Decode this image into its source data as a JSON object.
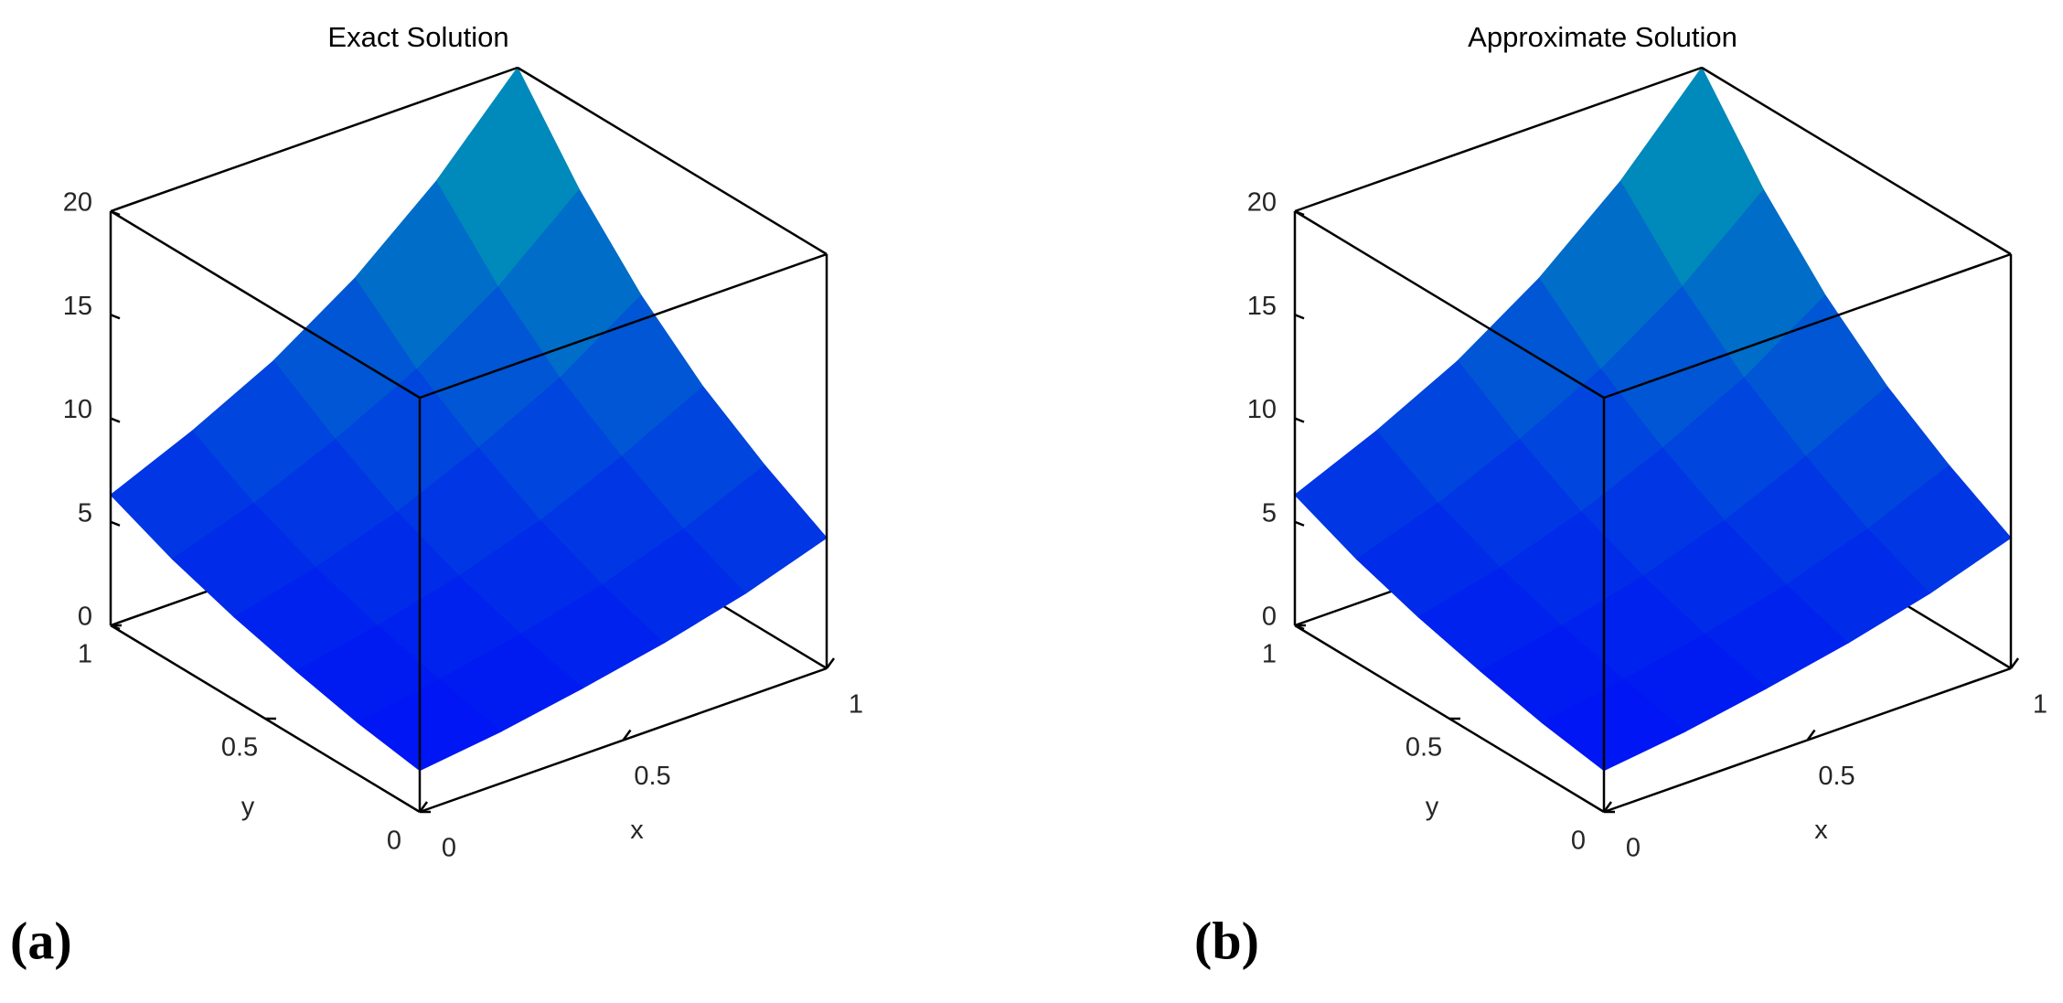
{
  "chart_data": [
    {
      "type": "surface",
      "title": "Exact Solution",
      "panel_label": "(a)",
      "xlabel": "x",
      "ylabel": "y",
      "x": [
        0,
        0.2,
        0.4,
        0.6,
        0.8,
        1
      ],
      "y": [
        0,
        0.2,
        0.4,
        0.6,
        0.8,
        1
      ],
      "z": [
        [
          2.0,
          2.5,
          3.2,
          4.0,
          5.0,
          6.3
        ],
        [
          2.5,
          3.2,
          4.0,
          5.0,
          6.3,
          8.0
        ],
        [
          3.2,
          4.0,
          5.0,
          6.3,
          8.0,
          10.0
        ],
        [
          4.0,
          5.0,
          6.3,
          8.0,
          10.0,
          12.6
        ],
        [
          5.0,
          6.3,
          8.0,
          10.0,
          12.6,
          15.9
        ],
        [
          6.3,
          8.0,
          10.0,
          12.6,
          15.9,
          20.0
        ]
      ],
      "xlim": [
        0,
        1
      ],
      "ylim": [
        0,
        1
      ],
      "zlim": [
        0,
        20
      ],
      "xticks": [
        0,
        0.5,
        1
      ],
      "yticks": [
        0,
        0.5,
        1
      ],
      "zticks": [
        0,
        5,
        10,
        15,
        20
      ],
      "colormap": "winter",
      "clim": [
        0,
        30
      ]
    },
    {
      "type": "surface",
      "title": "Approximate Solution",
      "panel_label": "(b)",
      "xlabel": "x",
      "ylabel": "y",
      "x": [
        0,
        0.2,
        0.4,
        0.6,
        0.8,
        1
      ],
      "y": [
        0,
        0.2,
        0.4,
        0.6,
        0.8,
        1
      ],
      "z": [
        [
          2.0,
          2.5,
          3.2,
          4.0,
          5.0,
          6.3
        ],
        [
          2.5,
          3.2,
          4.0,
          5.0,
          6.3,
          8.0
        ],
        [
          3.2,
          4.0,
          5.0,
          6.3,
          8.0,
          10.0
        ],
        [
          4.0,
          5.0,
          6.3,
          8.0,
          10.0,
          12.6
        ],
        [
          5.0,
          6.3,
          8.0,
          10.0,
          12.6,
          15.9
        ],
        [
          6.3,
          8.0,
          10.0,
          12.6,
          15.9,
          20.0
        ]
      ],
      "xlim": [
        0,
        1
      ],
      "ylim": [
        0,
        1
      ],
      "zlim": [
        0,
        20
      ],
      "xticks": [
        0,
        0.5,
        1
      ],
      "yticks": [
        0,
        0.5,
        1
      ],
      "zticks": [
        0,
        5,
        10,
        15,
        20
      ],
      "colormap": "winter",
      "clim": [
        0,
        30
      ]
    }
  ]
}
